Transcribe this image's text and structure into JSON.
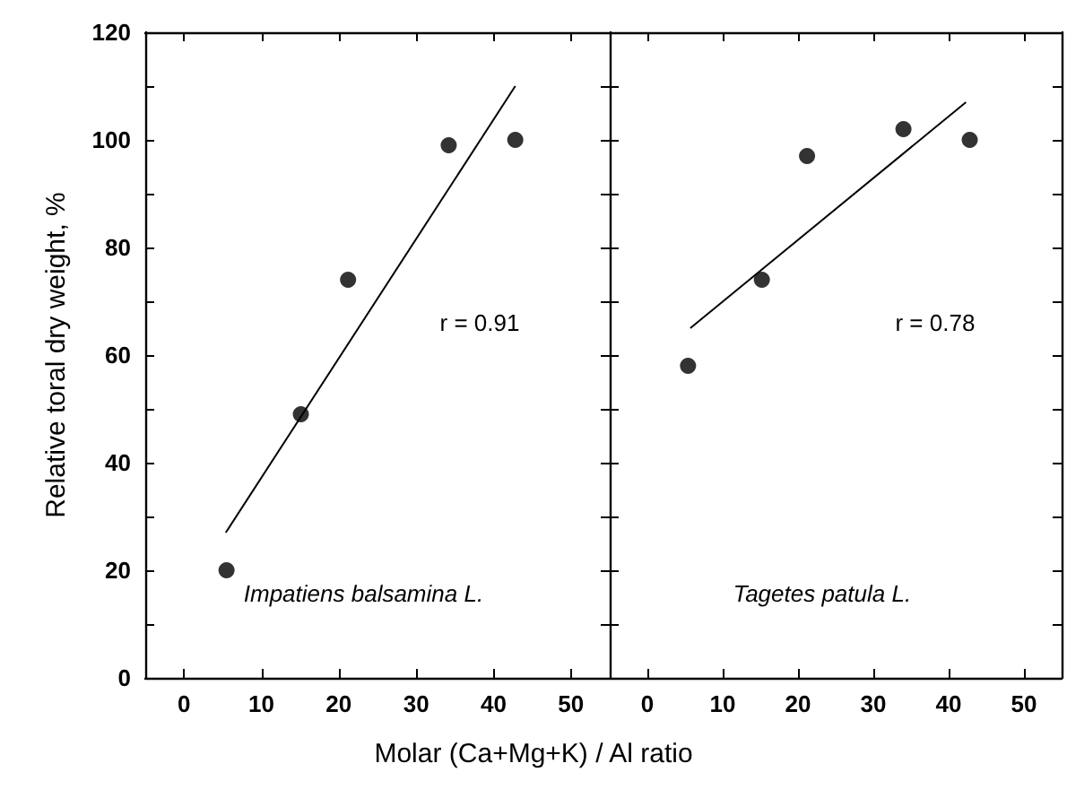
{
  "chart_data": [
    {
      "type": "scatter",
      "ylabel": "Relative toral dry weight, %",
      "xlabel": "Molar (Ca+Mg+K) / Al ratio",
      "xlim": [
        -5,
        55
      ],
      "xticks": [
        0,
        10,
        20,
        30,
        40,
        50
      ],
      "ylim": [
        0,
        120
      ],
      "yticks": [
        0,
        {
          "value": 10,
          "label": null
        },
        20,
        {
          "value": 30,
          "label": null
        },
        40,
        {
          "value": 50,
          "label": null
        },
        60,
        {
          "value": 70,
          "label": null
        },
        80,
        {
          "value": 90,
          "label": null
        },
        100,
        {
          "value": 110,
          "label": null
        },
        120
      ],
      "grid": false,
      "annotations": [
        "r = 0.91",
        "Impatiens balsamina L."
      ],
      "series": [
        {
          "marker": "circle",
          "color": "#000000",
          "x": [
            5.5,
            15.1,
            21.2,
            34.2,
            42.8
          ],
          "values": [
            20,
            49,
            74,
            99,
            100
          ]
        },
        {
          "type": "line",
          "color": "#000000",
          "x": [
            5.4,
            42.8
          ],
          "values": [
            27,
            110
          ]
        }
      ]
    },
    {
      "type": "scatter",
      "xlim": [
        -5,
        55
      ],
      "xticks": [
        0,
        10,
        20,
        30,
        40,
        50
      ],
      "ylim": [
        0,
        120
      ],
      "yticks": [
        0,
        {
          "value": 10,
          "label": null
        },
        20,
        {
          "value": 30,
          "label": null
        },
        40,
        {
          "value": 50,
          "label": null
        },
        60,
        {
          "value": 70,
          "label": null
        },
        80,
        {
          "value": 90,
          "label": null
        },
        100,
        {
          "value": 110,
          "label": null
        },
        120
      ],
      "tick_labels": "x",
      "grid": false,
      "annotations": [
        "r = 0.78",
        "Tagetes patula L."
      ],
      "series": [
        {
          "marker": "circle",
          "color": "#000000",
          "x": [
            5.4,
            15.2,
            21.2,
            34.0,
            42.8
          ],
          "values": [
            58,
            74,
            97,
            102,
            100
          ]
        },
        {
          "type": "line",
          "color": "#000000",
          "x": [
            5.7,
            42.3
          ],
          "values": [
            65,
            107
          ]
        }
      ]
    }
  ]
}
